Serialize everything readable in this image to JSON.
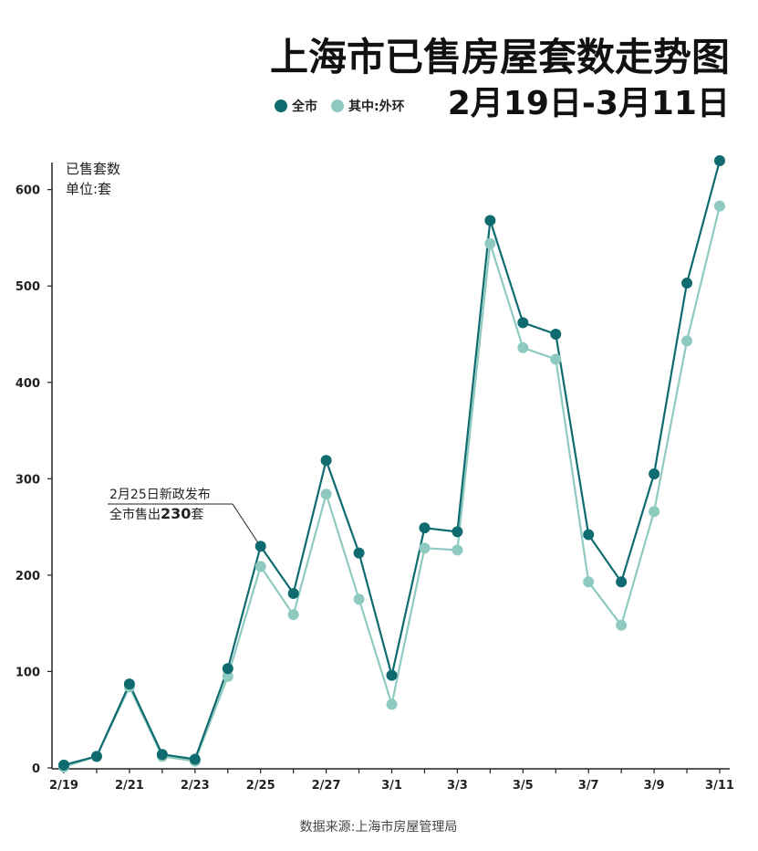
{
  "chart_data": {
    "type": "line",
    "title": "上海市已售房屋套数走势图",
    "subtitle": "2月19日-3月11日",
    "ylabel_line1": "已售套数",
    "ylabel_line2": "单位:套",
    "ylim": [
      0,
      630
    ],
    "yticks": [
      "0",
      "100",
      "200",
      "300",
      "400",
      "500",
      "600"
    ],
    "xtick_labels": [
      "2/19",
      "2/21",
      "2/23",
      "2/25",
      "2/27",
      "3/1",
      "3/3",
      "3/5",
      "3/7",
      "3/9",
      "3/11"
    ],
    "categories": [
      "2/19",
      "2/20",
      "2/21",
      "2/22",
      "2/23",
      "2/24",
      "2/25",
      "2/26",
      "2/27",
      "2/28",
      "3/1",
      "3/2",
      "3/3",
      "3/4",
      "3/5",
      "3/6",
      "3/7",
      "3/8",
      "3/9",
      "3/10",
      "3/11"
    ],
    "series": [
      {
        "name": "全市",
        "color": "#0f6b6f",
        "values": [
          3,
          12,
          87,
          14,
          9,
          103,
          230,
          181,
          319,
          223,
          96,
          249,
          245,
          568,
          462,
          450,
          242,
          193,
          305,
          503,
          630
        ]
      },
      {
        "name": "其中:外环",
        "color": "#8fcac0",
        "values": [
          1,
          12,
          84,
          12,
          7,
          95,
          209,
          159,
          284,
          175,
          66,
          228,
          226,
          544,
          436,
          424,
          193,
          148,
          266,
          443,
          583
        ]
      }
    ],
    "annotation": {
      "line1": "2月25日新政发布",
      "line2_prefix": "全市售出",
      "line2_value": "230",
      "line2_suffix": "套"
    },
    "source": "数据来源:上海市房屋管理局",
    "grid": false,
    "legend": "top-left"
  }
}
